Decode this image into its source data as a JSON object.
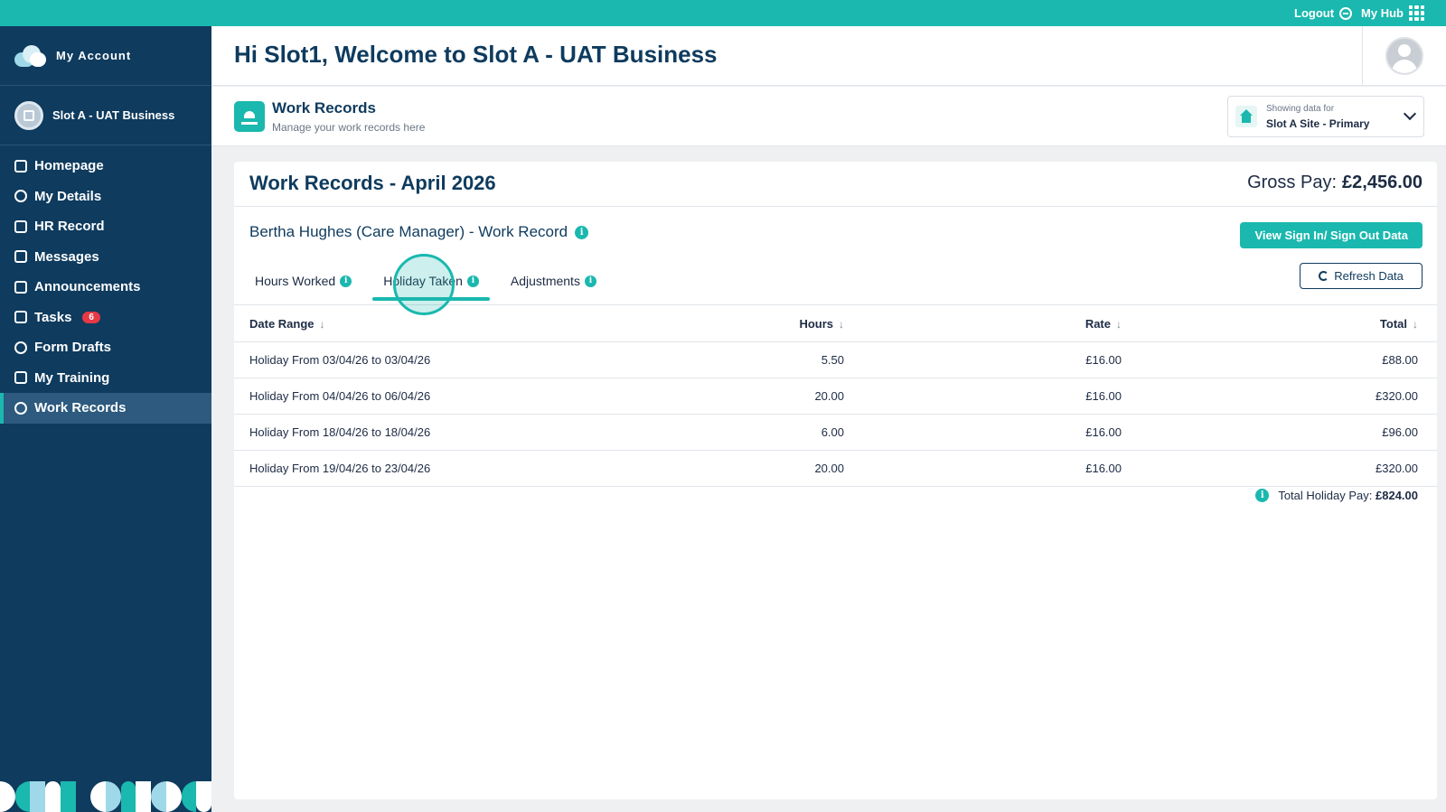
{
  "topbar": {
    "logout_label": "Logout",
    "hub_label": "My Hub"
  },
  "sidebar": {
    "title": "My Account",
    "business": "Slot A - UAT Business",
    "items": [
      {
        "label": "Homepage",
        "icon": "home-icon"
      },
      {
        "label": "My Details",
        "icon": "user-circle-icon"
      },
      {
        "label": "HR Record",
        "icon": "id-card-icon"
      },
      {
        "label": "Messages",
        "icon": "mail-icon"
      },
      {
        "label": "Announcements",
        "icon": "megaphone-icon"
      },
      {
        "label": "Tasks",
        "icon": "checkbox-icon",
        "badge": "6"
      },
      {
        "label": "Form Drafts",
        "icon": "pencil-icon"
      },
      {
        "label": "My Training",
        "icon": "graduation-cap-icon"
      },
      {
        "label": "Work Records",
        "icon": "clock-icon",
        "active": true
      }
    ]
  },
  "header": {
    "title": "Hi Slot1, Welcome to Slot A - UAT Business"
  },
  "subheader": {
    "title": "Work Records",
    "subtitle": "Manage your work records here",
    "site_label": "Showing data for",
    "site_value": "Slot A Site - Primary"
  },
  "card": {
    "title": "Work Records - April 2026",
    "gross_label": "Gross Pay:",
    "gross_value": "£2,456.00",
    "person": "Bertha Hughes (Care Manager) - Work Record",
    "sign_button": "View Sign In/ Sign Out Data",
    "refresh_button": "Refresh Data",
    "tabs": [
      {
        "label": "Hours Worked"
      },
      {
        "label": "Holiday Taken",
        "active": true
      },
      {
        "label": "Adjustments"
      }
    ],
    "columns": [
      "Date Range",
      "Hours",
      "Rate",
      "Total"
    ],
    "rows": [
      {
        "range": "Holiday From 03/04/26 to 03/04/26",
        "hours": "5.50",
        "rate": "£16.00",
        "total": "£88.00"
      },
      {
        "range": "Holiday From 04/04/26 to 06/04/26",
        "hours": "20.00",
        "rate": "£16.00",
        "total": "£320.00"
      },
      {
        "range": "Holiday From 18/04/26 to 18/04/26",
        "hours": "6.00",
        "rate": "£16.00",
        "total": "£96.00"
      },
      {
        "range": "Holiday From 19/04/26 to 23/04/26",
        "hours": "20.00",
        "rate": "£16.00",
        "total": "£320.00"
      }
    ],
    "total_label": "Total Holiday Pay:",
    "total_value": "£824.00"
  },
  "colors": {
    "accent": "#1ab8ae",
    "sidebar": "#0e3b5e",
    "badge": "#e63946"
  }
}
